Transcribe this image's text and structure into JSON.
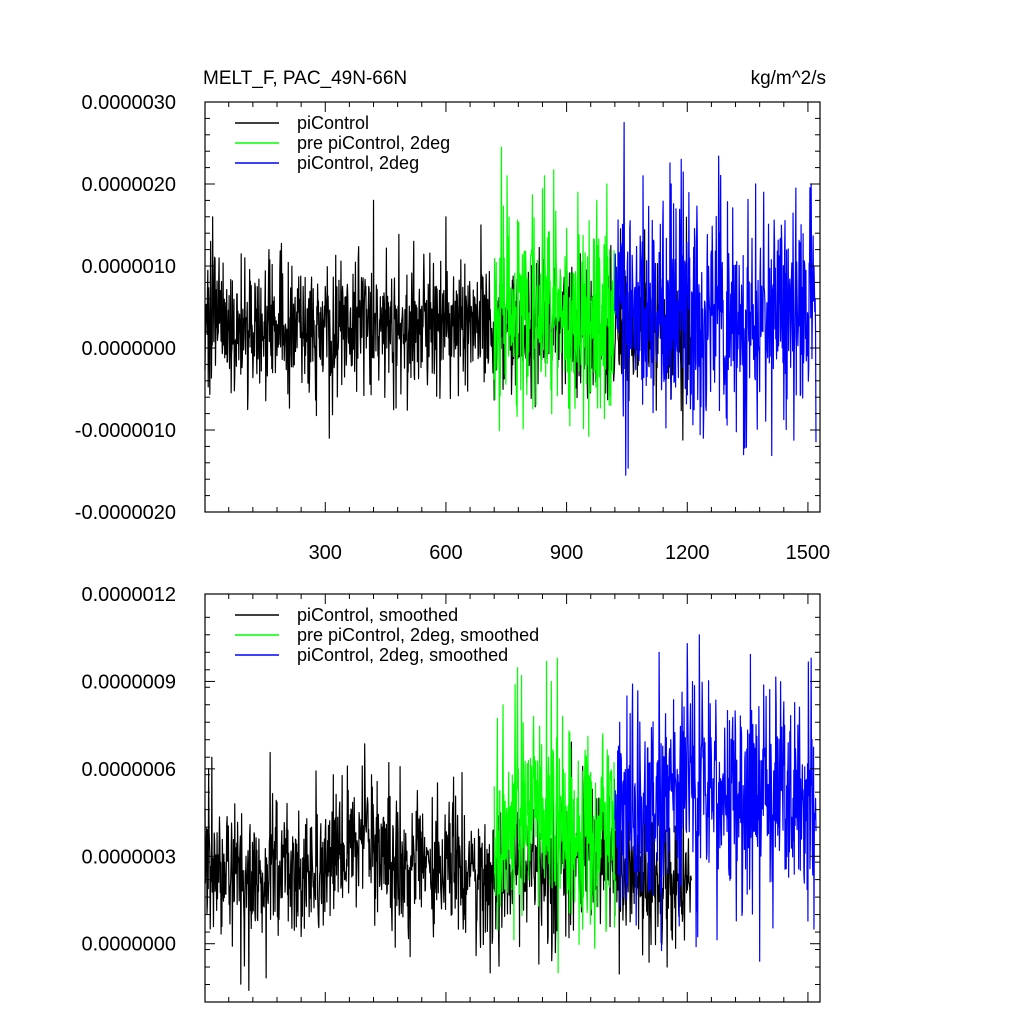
{
  "chart_data": [
    {
      "type": "line",
      "title": "MELT_F, PAC_49N-66N",
      "units": "kg/m^2/s",
      "xlim": [
        1,
        1530
      ],
      "ylim": [
        -2e-06,
        3e-06
      ],
      "x_ticks": [
        300,
        600,
        900,
        1200,
        1500
      ],
      "x_tick_labels": [
        "300",
        "600",
        "900",
        "1200",
        "1500"
      ],
      "y_ticks": [
        -2e-06,
        -1e-06,
        0,
        1e-06,
        2e-06,
        3e-06
      ],
      "y_tick_labels": [
        "-0.0000020",
        "-0.0000010",
        "0.0000000",
        "0.0000010",
        "0.0000020",
        "0.0000030"
      ],
      "legend_position": "top-left",
      "series": [
        {
          "name": "piControl",
          "color": "#000000",
          "x_range": [
            1,
            1210
          ],
          "knots_x": [
            1,
            50,
            100,
            150,
            200,
            250,
            300,
            350,
            400,
            450,
            500,
            550,
            600,
            650,
            700,
            720,
            760,
            800,
            850,
            900,
            950,
            1000,
            1050,
            1100,
            1150,
            1210
          ],
          "knots_y": [
            3.2e-07,
            2.5e-07,
            2e-07,
            2.3e-07,
            2.6e-07,
            2.2e-07,
            2.8e-07,
            2.9e-07,
            3.4e-07,
            3e-07,
            2.5e-07,
            2.6e-07,
            2.8e-07,
            2.4e-07,
            2.1e-07,
            2e-07,
            2.3e-07,
            2.7e-07,
            2.8e-07,
            2.9e-07,
            2.7e-07,
            2.6e-07,
            2.4e-07,
            2.5e-07,
            2.2e-07,
            2.3e-07
          ],
          "noise_std": 4e-07,
          "spike_x": [
            3,
            15,
            20,
            36,
            100,
            160,
            310,
            420,
            520,
            600,
            700,
            840,
            900
          ],
          "spike_y": [
            5e-07,
            1.3e-06,
            1.6e-06,
            1.1e-06,
            1.1e-06,
            1.2e-06,
            -1.1e-06,
            1.8e-06,
            1.3e-06,
            1.6e-06,
            9e-07,
            1.2e-06,
            1.1e-06
          ]
        },
        {
          "name": "pre piControl, 2deg",
          "color": "#00ff00",
          "x_range": [
            720,
            1020
          ],
          "knots_x": [
            720,
            780,
            840,
            900,
            960,
            1020
          ],
          "knots_y": [
            3.5e-07,
            4.2e-07,
            4.8e-07,
            4e-07,
            4e-07,
            3.8e-07
          ],
          "noise_std": 6e-07,
          "spike_x": [
            738,
            752,
            845,
            908,
            928,
            975,
            1000,
            1010
          ],
          "spike_y": [
            2.45e-06,
            2.1e-06,
            2.1e-06,
            -9.5e-07,
            1.9e-06,
            1.8e-06,
            2e-06,
            -7e-07
          ],
          "seed": 202
        },
        {
          "name": "piControl, 2deg",
          "color": "#0000ff",
          "x_range": [
            1020,
            1520
          ],
          "knots_x": [
            1020,
            1100,
            1200,
            1300,
            1400,
            1520
          ],
          "knots_y": [
            3.8e-07,
            4.2e-07,
            4.5e-07,
            3.9e-07,
            4.3e-07,
            4e-07
          ],
          "noise_std": 6.5e-07,
          "spike_x": [
            1043,
            1047,
            1090,
            1160,
            1185,
            1240,
            1340,
            1370,
            1390,
            1470,
            1508
          ],
          "spike_y": [
            2.75e-06,
            -1.55e-06,
            2.1e-06,
            2e-06,
            2.3e-06,
            -1.1e-06,
            -1.3e-06,
            2e-06,
            1.9e-06,
            1.95e-06,
            2e-06
          ],
          "seed": 303
        }
      ]
    },
    {
      "type": "line",
      "xlim": [
        1,
        1530
      ],
      "ylim": [
        -2e-07,
        1.2e-06
      ],
      "x_ticks": [
        300,
        600,
        900,
        1200,
        1500
      ],
      "y_ticks": [
        0,
        3e-07,
        6e-07,
        9e-07,
        1.2e-06
      ],
      "y_tick_labels": [
        "0.0000000",
        "0.0000003",
        "0.0000006",
        "0.0000009",
        "0.0000012"
      ],
      "legend_position": "top-left",
      "series": [
        {
          "name": "piControl, smoothed",
          "color": "#000000",
          "x_range": [
            1,
            1210
          ],
          "knots_x": [
            1,
            50,
            100,
            150,
            200,
            250,
            300,
            350,
            400,
            450,
            500,
            550,
            600,
            650,
            700,
            720,
            760,
            800,
            850,
            900,
            950,
            1000,
            1050,
            1100,
            1150,
            1210
          ],
          "knots_y": [
            3.2e-07,
            2.5e-07,
            2e-07,
            2.3e-07,
            2.6e-07,
            2.2e-07,
            2.8e-07,
            2.9e-07,
            3.4e-07,
            3e-07,
            2.5e-07,
            2.6e-07,
            2.8e-07,
            2.4e-07,
            2.1e-07,
            2e-07,
            2.3e-07,
            2.7e-07,
            2.8e-07,
            2.9e-07,
            2.7e-07,
            2.6e-07,
            2.4e-07,
            2.5e-07,
            2.2e-07,
            2.3e-07
          ],
          "noise_std": 1.2e-07,
          "spike_x": [
            18,
            75,
            110,
            320,
            355,
            392,
            415,
            480,
            575,
            710,
            790,
            980
          ],
          "spike_y": [
            6.4e-07,
            4.8e-07,
            -1.6e-07,
            5.8e-07,
            6.1e-07,
            6.1e-07,
            5.8e-07,
            4.5e-07,
            4.2e-07,
            -1e-07,
            4.5e-07,
            5e-07
          ],
          "seed": 404
        },
        {
          "name": "pre piControl, 2deg, smoothed",
          "color": "#00ff00",
          "x_range": [
            720,
            1020
          ],
          "knots_x": [
            720,
            780,
            840,
            900,
            960,
            1020
          ],
          "knots_y": [
            3.5e-07,
            4.2e-07,
            4.8e-07,
            4e-07,
            4e-07,
            3.8e-07
          ],
          "noise_std": 1.7e-07,
          "spike_x": [
            742,
            788,
            818,
            862,
            877,
            990
          ],
          "spike_y": [
            8.2e-07,
            9.2e-07,
            7.8e-07,
            9e-07,
            9.8e-07,
            7.2e-07
          ],
          "seed": 505
        },
        {
          "name": "piControl, 2deg, smoothed",
          "color": "#0000ff",
          "x_range": [
            1020,
            1520
          ],
          "knots_x": [
            1020,
            1100,
            1200,
            1300,
            1400,
            1520
          ],
          "knots_y": [
            4.2e-07,
            5e-07,
            5.5e-07,
            4.7e-07,
            5e-07,
            4.7e-07
          ],
          "noise_std": 1.7e-07,
          "spike_x": [
            1050,
            1130,
            1200,
            1230,
            1300,
            1380,
            1440,
            1475,
            1508
          ],
          "spike_y": [
            8.5e-07,
            1e-06,
            1.03e-06,
            1.06e-06,
            8e-07,
            -6e-08,
            8.3e-07,
            7.5e-07,
            9.8e-07
          ],
          "seed": 606
        }
      ]
    }
  ]
}
